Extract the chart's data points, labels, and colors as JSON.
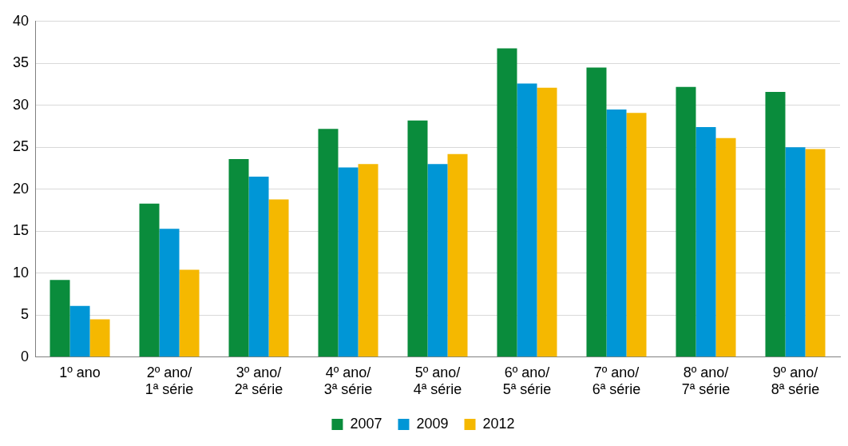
{
  "chart_data": {
    "type": "bar",
    "categories": [
      "1º ano",
      "2º ano/\n1ª série",
      "3º ano/\n2ª série",
      "4º ano/\n3ª série",
      "5º ano/\n4ª série",
      "6º ano/\n5ª série",
      "7º ano/\n6ª série",
      "8º ano/\n7ª série",
      "9º ano/\n8ª série"
    ],
    "series": [
      {
        "name": "2007",
        "color": "#0a8c3c",
        "values": [
          9.2,
          18.3,
          23.6,
          27.2,
          28.2,
          36.8,
          34.5,
          32.2,
          31.6
        ]
      },
      {
        "name": "2009",
        "color": "#0096d6",
        "values": [
          6.1,
          15.3,
          21.5,
          22.6,
          23.0,
          32.6,
          29.5,
          27.4,
          25.0
        ]
      },
      {
        "name": "2012",
        "color": "#f5b800",
        "values": [
          4.5,
          10.4,
          18.8,
          23.0,
          24.2,
          32.1,
          29.1,
          26.1,
          24.8
        ]
      }
    ],
    "ylim": [
      0,
      40
    ],
    "yticks": [
      0,
      5,
      10,
      15,
      20,
      25,
      30,
      35,
      40
    ],
    "grid": "y",
    "legend": "bottom"
  }
}
